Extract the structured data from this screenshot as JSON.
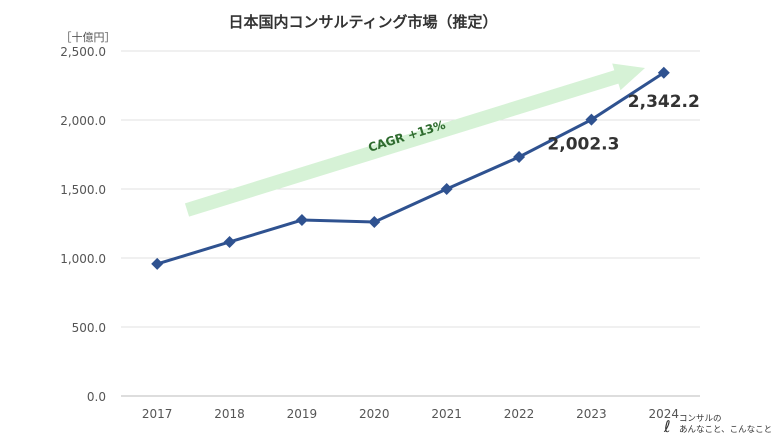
{
  "chart_data": {
    "type": "line",
    "title": "日本国内コンサルティング市場（推定）",
    "unit_label": "［十億円］",
    "categories": [
      "2017",
      "2018",
      "2019",
      "2020",
      "2021",
      "2022",
      "2023",
      "2024"
    ],
    "series": [
      {
        "values": [
          957,
          1116,
          1275,
          1261,
          1500,
          1732,
          2002.3,
          2342.2
        ],
        "color": "#2f5290"
      }
    ],
    "ylim": [
      0,
      2500
    ],
    "yticks": [
      "0.0",
      "500.0",
      "1,000.0",
      "1,500.0",
      "2,000.0",
      "2,500.0"
    ],
    "grid": true,
    "data_labels": {
      "2023": "2,002.3",
      "2024": "2,342.2"
    },
    "annotation": {
      "text": "CAGR +13%",
      "arrow_color": "#d6f2d6",
      "text_color": "#2e6b2e"
    }
  },
  "logo": {
    "text": "コンサルの あんなこと、こんなこと"
  }
}
